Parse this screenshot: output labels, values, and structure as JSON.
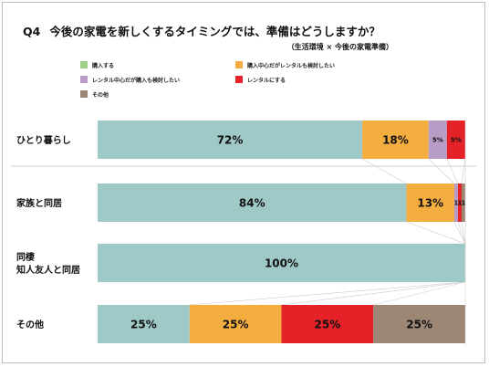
{
  "title": {
    "q": "Q4",
    "text": "今後の家電を新しくするタイミングでは、準備はどうしますか？"
  },
  "subtitle": "（生活環境 × 今後の家電準備）",
  "chart_data": {
    "type": "bar",
    "orientation": "horizontal",
    "stacked": true,
    "normalized": true,
    "categories": [
      [
        "ひとり暮らし"
      ],
      [
        "家族と同居"
      ],
      [
        "同棲",
        "知人友人と同居"
      ],
      [
        "その他"
      ]
    ],
    "series": [
      {
        "name": "購入する",
        "color": "#9fc9c6",
        "values": [
          72,
          84,
          100,
          25
        ],
        "labels": [
          "72%",
          "84%",
          "100%",
          "25%"
        ]
      },
      {
        "name": "購入中心だがレンタルも検討したい",
        "color": "#f4ae40",
        "values": [
          18,
          13,
          0,
          25
        ],
        "labels": [
          "18%",
          "13%",
          "",
          "25%"
        ]
      },
      {
        "name": "レンタル中心だが購入も検討したい",
        "color": "#b79dc6",
        "values": [
          5,
          1,
          0,
          0
        ],
        "labels": [
          "5%",
          "1",
          "",
          ""
        ]
      },
      {
        "name": "レンタルにする",
        "color": "#e52228",
        "values": [
          5,
          1,
          0,
          25
        ],
        "labels": [
          "5%",
          "1",
          "",
          "25%"
        ]
      },
      {
        "name": "その他",
        "color": "#9c8674",
        "values": [
          0,
          1,
          0,
          25
        ],
        "labels": [
          "",
          "1",
          "",
          "25%"
        ]
      }
    ],
    "legend_position": "top",
    "legend_swatch_colors": [
      "#9fd08a",
      "#f4ae40",
      "#b79dc6",
      "#e52228",
      "#9c8674"
    ]
  }
}
